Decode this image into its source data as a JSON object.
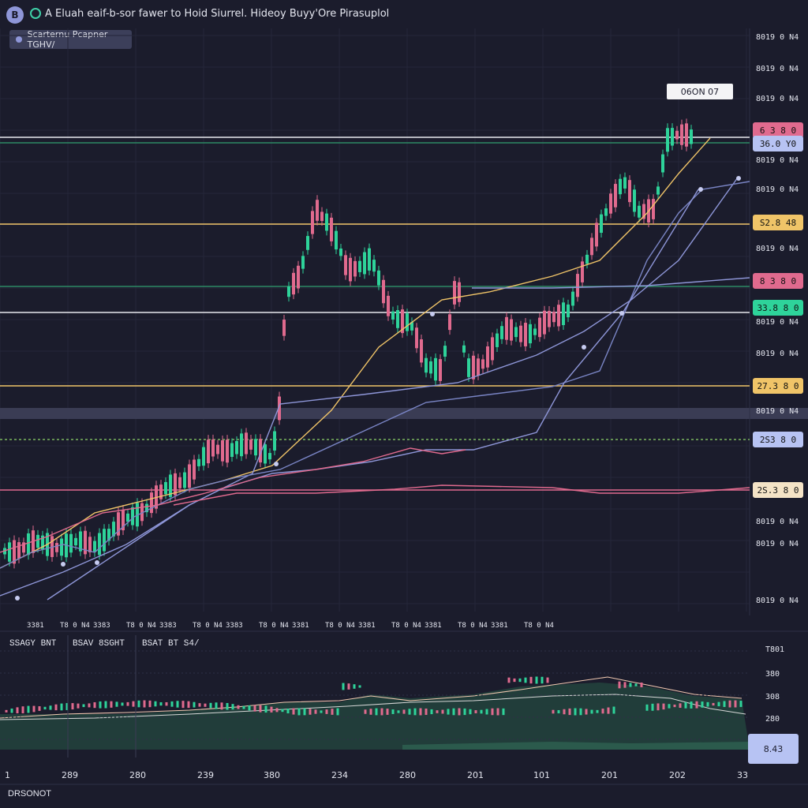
{
  "header": {
    "badge": "B",
    "title": "A Eluah eaif-b-sor fawer to Hoid Siurrel. Hideoy Buyy'Ore Pirasuplol",
    "chip_label": "Scarternu Pcapner TGHV/"
  },
  "callout": "06ON 07",
  "right_axis": [
    "8019 0 N4",
    "8019 0 N4",
    "8019 0 N4",
    "8019 0 N4",
    "8019 0 N4",
    "8019 0 N4",
    "8019 0 N4",
    "8019 0 N4",
    "8019 0 N4",
    "8019 0 N4",
    "8019 0 N4",
    "8019 0 N4",
    "8019 0 N4",
    "8019 0 N4",
    "8019 0 N4",
    "8019 0 N4",
    "8019 0 N4",
    "8019 0 N4"
  ],
  "price_tags": [
    {
      "text": "6 3 8 0",
      "color": "#e06a8e"
    },
    {
      "text": "36.0 Y0",
      "color": "#b7c3f3"
    },
    {
      "text": "S2.8 48",
      "color": "#f0c468"
    },
    {
      "text": "8 3 8 0",
      "color": "#e06a8e"
    },
    {
      "text": "33.8 8 0",
      "color": "#2ed39a"
    },
    {
      "text": "27.3 8 0",
      "color": "#f0c468"
    },
    {
      "text": "2S3 8 0",
      "color": "#b7c3f3"
    },
    {
      "text": "2S.3 8 0",
      "color": "#f4e3c6"
    }
  ],
  "x_axis": [
    "3381",
    "T8 0 N4",
    "3383",
    "T8 0 N4",
    "3383",
    "T8 0 N4",
    "3383",
    "T8 0 N4",
    "3381",
    "T8 0 N4",
    "3381",
    "T8 0 N4",
    "3381",
    "T8 0 N4",
    "3381",
    "T8 0 N4"
  ],
  "lower": {
    "tabs": [
      "SSAGY BNT",
      "BSAV 8SGHT",
      "BSAT BT S4/"
    ],
    "right_axis": [
      "T801",
      "380",
      "308",
      "280"
    ],
    "tag": "8.43",
    "x_axis": [
      "1",
      "289",
      "280",
      "239",
      "380",
      "234",
      "280",
      "201",
      "101",
      "201",
      "202",
      "33"
    ]
  },
  "footer": "DRSONOT",
  "colors": {
    "up": "#2ed39a",
    "down": "#e06a8e",
    "blue": "#8e96d8",
    "yellow": "#f0c468",
    "pink": "#e06a8e",
    "white": "#e8e8ee"
  }
}
